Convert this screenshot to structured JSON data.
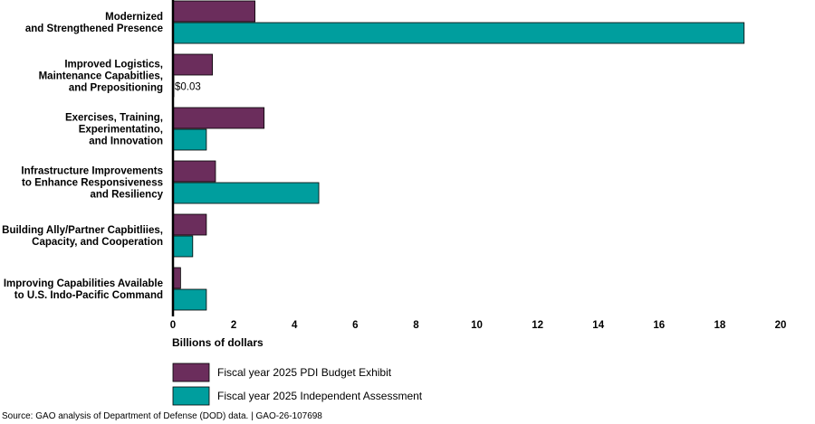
{
  "chart_data": {
    "type": "bar",
    "orientation": "horizontal",
    "categories": [
      [
        "Modernized",
        "and Strengthened Presence"
      ],
      [
        "Improved Logistics,",
        "Maintenance Capabitlies,",
        "and Prepositioning"
      ],
      [
        "Exercises, Training,",
        "Experimentatino,",
        "and Innovation"
      ],
      [
        "Infrastructure Improvements",
        "to Enhance Responsiveness",
        "and Resiliency"
      ],
      [
        "Building Ally/Partner Capbitliies,",
        "Capacity, and Cooperation"
      ],
      [
        "Improving Capabilities Available",
        "to U.S. Indo-Pacific Command"
      ]
    ],
    "series": [
      {
        "name": "Fiscal year 2025 PDI Budget Exhibit",
        "color": "#6b2d5c",
        "values": [
          2.7,
          1.3,
          3.0,
          1.4,
          1.1,
          0.25
        ]
      },
      {
        "name": "Fiscal year 2025 Independent Assessment",
        "color": "#009e9e",
        "values": [
          18.8,
          0.03,
          1.1,
          4.8,
          0.65,
          1.1
        ]
      }
    ],
    "annotations": [
      {
        "category_index": 1,
        "series_index": 1,
        "text": "$0.03"
      }
    ],
    "xlabel": "Billions of dollars",
    "xlim": [
      0,
      20
    ],
    "xticks": [
      0,
      2,
      4,
      6,
      8,
      10,
      12,
      14,
      16,
      18,
      20
    ],
    "grid": false,
    "legend_position": "bottom-left"
  },
  "source": "Source: GAO analysis of Department of Defense (DOD) data.  |  GAO-26-107698"
}
